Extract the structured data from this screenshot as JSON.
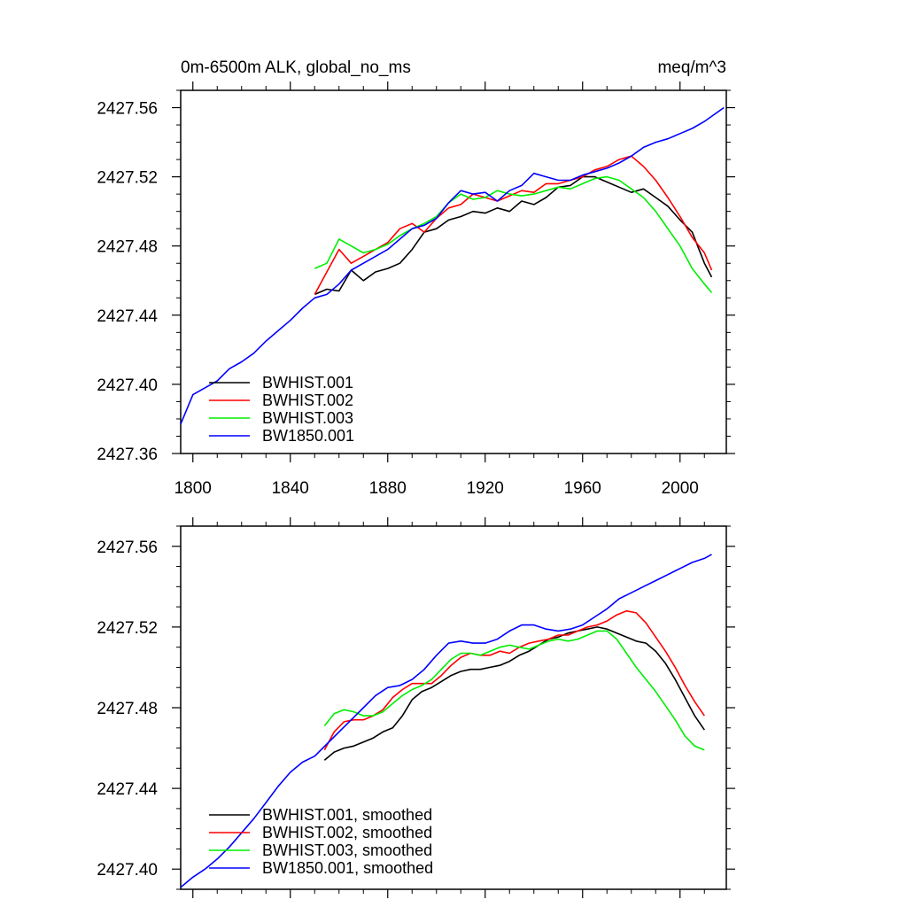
{
  "chart_data": [
    {
      "type": "line",
      "title_left": "0m-6500m ALK, global_no_ms",
      "title_right": "meq/m^3",
      "xlim": [
        1795,
        2019
      ],
      "ylim": [
        2427.36,
        2427.57
      ],
      "xticks": [
        1800,
        1840,
        1880,
        1920,
        1960,
        2000
      ],
      "yticks": [
        2427.36,
        2427.4,
        2427.44,
        2427.48,
        2427.52,
        2427.56
      ],
      "ytick_labels": [
        "2427.36",
        "2427.40",
        "2427.44",
        "2427.48",
        "2427.52",
        "2427.56"
      ],
      "legend_position": "bottom-left",
      "series": [
        {
          "name": "BWHIST.001",
          "color": "#000000",
          "x": [
            1850,
            1855,
            1860,
            1865,
            1870,
            1875,
            1880,
            1885,
            1890,
            1895,
            1900,
            1905,
            1910,
            1915,
            1920,
            1925,
            1930,
            1935,
            1940,
            1945,
            1950,
            1955,
            1960,
            1965,
            1970,
            1975,
            1980,
            1985,
            1990,
            1995,
            2000,
            2005,
            2010,
            2013
          ],
          "y": [
            2427.452,
            2427.455,
            2427.454,
            2427.466,
            2427.46,
            2427.465,
            2427.467,
            2427.47,
            2427.478,
            2427.488,
            2427.49,
            2427.495,
            2427.497,
            2427.5,
            2427.499,
            2427.502,
            2427.5,
            2427.506,
            2427.504,
            2427.508,
            2427.514,
            2427.515,
            2427.52,
            2427.52,
            2427.517,
            2427.514,
            2427.511,
            2427.513,
            2427.508,
            2427.503,
            2427.495,
            2427.488,
            2427.47,
            2427.462
          ]
        },
        {
          "name": "BWHIST.002",
          "color": "#ff0000",
          "x": [
            1850,
            1855,
            1860,
            1865,
            1870,
            1875,
            1880,
            1885,
            1890,
            1895,
            1900,
            1905,
            1910,
            1915,
            1920,
            1925,
            1930,
            1935,
            1940,
            1945,
            1950,
            1955,
            1960,
            1965,
            1970,
            1975,
            1980,
            1985,
            1990,
            1995,
            2000,
            2005,
            2010,
            2013
          ],
          "y": [
            2427.452,
            2427.465,
            2427.478,
            2427.47,
            2427.474,
            2427.478,
            2427.482,
            2427.49,
            2427.493,
            2427.488,
            2427.496,
            2427.502,
            2427.504,
            2427.51,
            2427.508,
            2427.506,
            2427.509,
            2427.512,
            2427.511,
            2427.516,
            2427.516,
            2427.518,
            2427.52,
            2427.524,
            2427.526,
            2427.53,
            2427.532,
            2427.526,
            2427.518,
            2427.508,
            2427.497,
            2427.485,
            2427.476,
            2427.466
          ]
        },
        {
          "name": "BWHIST.003",
          "color": "#00ee00",
          "x": [
            1850,
            1855,
            1860,
            1865,
            1870,
            1875,
            1880,
            1885,
            1890,
            1895,
            1900,
            1905,
            1910,
            1915,
            1920,
            1925,
            1930,
            1935,
            1940,
            1945,
            1950,
            1955,
            1960,
            1965,
            1970,
            1975,
            1980,
            1985,
            1990,
            1995,
            2000,
            2005,
            2010,
            2013
          ],
          "y": [
            2427.467,
            2427.47,
            2427.484,
            2427.48,
            2427.476,
            2427.478,
            2427.481,
            2427.486,
            2427.49,
            2427.493,
            2427.497,
            2427.505,
            2427.51,
            2427.507,
            2427.508,
            2427.512,
            2427.51,
            2427.509,
            2427.51,
            2427.512,
            2427.514,
            2427.513,
            2427.516,
            2427.519,
            2427.52,
            2427.518,
            2427.513,
            2427.508,
            2427.5,
            2427.49,
            2427.48,
            2427.467,
            2427.458,
            2427.453
          ]
        },
        {
          "name": "BW1850.001",
          "color": "#0000ff",
          "x": [
            1795,
            1800,
            1805,
            1810,
            1815,
            1820,
            1825,
            1830,
            1835,
            1840,
            1845,
            1850,
            1855,
            1860,
            1865,
            1870,
            1875,
            1880,
            1885,
            1890,
            1895,
            1900,
            1905,
            1910,
            1915,
            1920,
            1925,
            1930,
            1935,
            1940,
            1945,
            1950,
            1955,
            1960,
            1965,
            1970,
            1975,
            1980,
            1985,
            1990,
            1995,
            2000,
            2005,
            2010,
            2015,
            2018
          ],
          "y": [
            2427.377,
            2427.394,
            2427.398,
            2427.402,
            2427.409,
            2427.413,
            2427.418,
            2427.425,
            2427.431,
            2427.437,
            2427.444,
            2427.45,
            2427.452,
            2427.458,
            2427.466,
            2427.47,
            2427.474,
            2427.478,
            2427.484,
            2427.49,
            2427.492,
            2427.496,
            2427.505,
            2427.512,
            2427.51,
            2427.511,
            2427.506,
            2427.512,
            2427.515,
            2427.522,
            2427.52,
            2427.518,
            2427.518,
            2427.521,
            2427.523,
            2427.525,
            2427.528,
            2427.532,
            2427.537,
            2427.54,
            2427.542,
            2427.545,
            2427.548,
            2427.552,
            2427.557,
            2427.56
          ]
        }
      ]
    },
    {
      "type": "line",
      "xlim": [
        1795,
        2019
      ],
      "ylim": [
        2427.39,
        2427.57
      ],
      "xticks": [
        1800,
        1840,
        1880,
        1920,
        1960,
        2000
      ],
      "yticks": [
        2427.4,
        2427.44,
        2427.48,
        2427.52,
        2427.56
      ],
      "ytick_labels": [
        "2427.40",
        "2427.44",
        "2427.48",
        "2427.52",
        "2427.56"
      ],
      "legend_position": "bottom-left",
      "series": [
        {
          "name": "BWHIST.001, smoothed",
          "color": "#000000",
          "x": [
            1854,
            1858,
            1862,
            1866,
            1870,
            1874,
            1878,
            1882,
            1886,
            1890,
            1894,
            1898,
            1902,
            1906,
            1910,
            1914,
            1918,
            1922,
            1926,
            1930,
            1934,
            1938,
            1942,
            1946,
            1950,
            1954,
            1958,
            1962,
            1966,
            1970,
            1974,
            1978,
            1982,
            1986,
            1990,
            1994,
            1998,
            2002,
            2006,
            2010
          ],
          "y": [
            2427.454,
            2427.458,
            2427.46,
            2427.461,
            2427.463,
            2427.465,
            2427.468,
            2427.47,
            2427.476,
            2427.484,
            2427.488,
            2427.49,
            2427.493,
            2427.496,
            2427.498,
            2427.499,
            2427.499,
            2427.5,
            2427.501,
            2427.503,
            2427.506,
            2427.508,
            2427.511,
            2427.514,
            2427.515,
            2427.517,
            2427.518,
            2427.519,
            2427.52,
            2427.519,
            2427.517,
            2427.515,
            2427.513,
            2427.512,
            2427.508,
            2427.502,
            2427.494,
            2427.485,
            2427.476,
            2427.469
          ]
        },
        {
          "name": "BWHIST.002, smoothed",
          "color": "#ff0000",
          "x": [
            1854,
            1858,
            1862,
            1866,
            1870,
            1874,
            1878,
            1882,
            1886,
            1890,
            1894,
            1898,
            1902,
            1906,
            1910,
            1914,
            1918,
            1922,
            1926,
            1930,
            1934,
            1938,
            1942,
            1946,
            1950,
            1954,
            1958,
            1962,
            1966,
            1970,
            1974,
            1978,
            1982,
            1986,
            1990,
            1994,
            1998,
            2002,
            2006,
            2010
          ],
          "y": [
            2427.459,
            2427.468,
            2427.473,
            2427.474,
            2427.474,
            2427.476,
            2427.479,
            2427.485,
            2427.489,
            2427.492,
            2427.492,
            2427.492,
            2427.496,
            2427.501,
            2427.505,
            2427.507,
            2427.506,
            2427.506,
            2427.508,
            2427.507,
            2427.51,
            2427.512,
            2427.513,
            2427.514,
            2427.516,
            2427.516,
            2427.518,
            2427.52,
            2427.521,
            2427.523,
            2427.526,
            2427.528,
            2427.527,
            2427.522,
            2427.515,
            2427.508,
            2427.5,
            2427.491,
            2427.483,
            2427.476
          ]
        },
        {
          "name": "BWHIST.003, smoothed",
          "color": "#00ee00",
          "x": [
            1854,
            1858,
            1862,
            1866,
            1870,
            1874,
            1878,
            1882,
            1886,
            1890,
            1894,
            1898,
            1902,
            1906,
            1910,
            1914,
            1918,
            1922,
            1926,
            1930,
            1934,
            1938,
            1942,
            1946,
            1950,
            1954,
            1958,
            1962,
            1966,
            1970,
            1974,
            1978,
            1982,
            1986,
            1990,
            1994,
            1998,
            2002,
            2006,
            2010
          ],
          "y": [
            2427.471,
            2427.477,
            2427.479,
            2427.478,
            2427.476,
            2427.476,
            2427.478,
            2427.482,
            2427.486,
            2427.489,
            2427.491,
            2427.494,
            2427.499,
            2427.504,
            2427.507,
            2427.507,
            2427.506,
            2427.508,
            2427.51,
            2427.511,
            2427.51,
            2427.509,
            2427.511,
            2427.513,
            2427.514,
            2427.513,
            2427.514,
            2427.516,
            2427.518,
            2427.518,
            2427.514,
            2427.507,
            2427.5,
            2427.494,
            2427.488,
            2427.481,
            2427.474,
            2427.466,
            2427.461,
            2427.459
          ]
        },
        {
          "name": "BW1850.001, smoothed",
          "color": "#0000ff",
          "x": [
            1795,
            1800,
            1805,
            1810,
            1815,
            1820,
            1825,
            1830,
            1835,
            1840,
            1845,
            1850,
            1855,
            1860,
            1865,
            1870,
            1875,
            1880,
            1885,
            1890,
            1895,
            1900,
            1905,
            1910,
            1915,
            1920,
            1925,
            1930,
            1935,
            1940,
            1945,
            1950,
            1955,
            1960,
            1965,
            1970,
            1975,
            1980,
            1985,
            1990,
            1995,
            2000,
            2005,
            2010,
            2013
          ],
          "y": [
            2427.391,
            2427.396,
            2427.4,
            2427.405,
            2427.411,
            2427.418,
            2427.425,
            2427.433,
            2427.441,
            2427.448,
            2427.453,
            2427.456,
            2427.462,
            2427.468,
            2427.474,
            2427.48,
            2427.486,
            2427.49,
            2427.491,
            2427.494,
            2427.499,
            2427.506,
            2427.512,
            2427.513,
            2427.512,
            2427.512,
            2427.514,
            2427.518,
            2427.521,
            2427.521,
            2427.519,
            2427.518,
            2427.519,
            2427.521,
            2427.525,
            2427.529,
            2427.534,
            2427.537,
            2427.54,
            2427.543,
            2427.546,
            2427.549,
            2427.552,
            2427.554,
            2427.556
          ]
        }
      ]
    }
  ]
}
